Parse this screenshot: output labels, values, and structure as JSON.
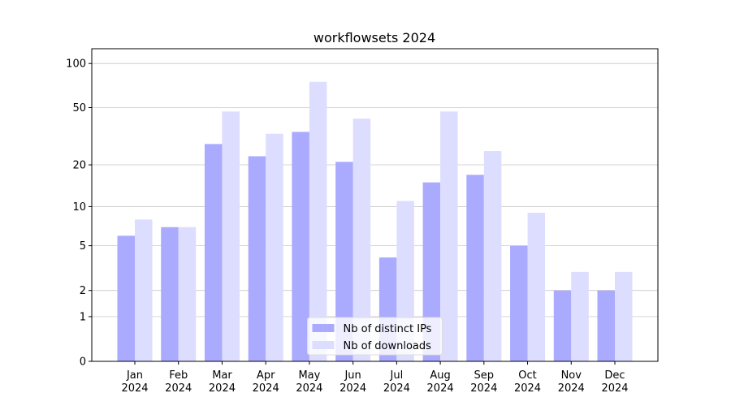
{
  "chart_data": {
    "type": "bar",
    "title": "workflowsets 2024",
    "categories": [
      "Jan 2024",
      "Feb 2024",
      "Mar 2024",
      "Apr 2024",
      "May 2024",
      "Jun 2024",
      "Jul 2024",
      "Aug 2024",
      "Sep 2024",
      "Oct 2024",
      "Nov 2024",
      "Dec 2024"
    ],
    "series": [
      {
        "name": "Nb of distinct IPs",
        "color": "#aaaaff",
        "values": [
          6,
          7,
          28,
          23,
          34,
          21,
          4,
          15,
          17,
          5,
          2,
          2
        ]
      },
      {
        "name": "Nb of downloads",
        "color": "#ddddff",
        "values": [
          8,
          7,
          47,
          33,
          75,
          42,
          11,
          47,
          25,
          9,
          3,
          3
        ]
      }
    ],
    "yscale": "log1p",
    "ylim": [
      0,
      126
    ],
    "yticks": [
      0,
      1,
      2,
      5,
      10,
      20,
      50,
      100
    ],
    "grid": true,
    "legend": "lower center"
  }
}
